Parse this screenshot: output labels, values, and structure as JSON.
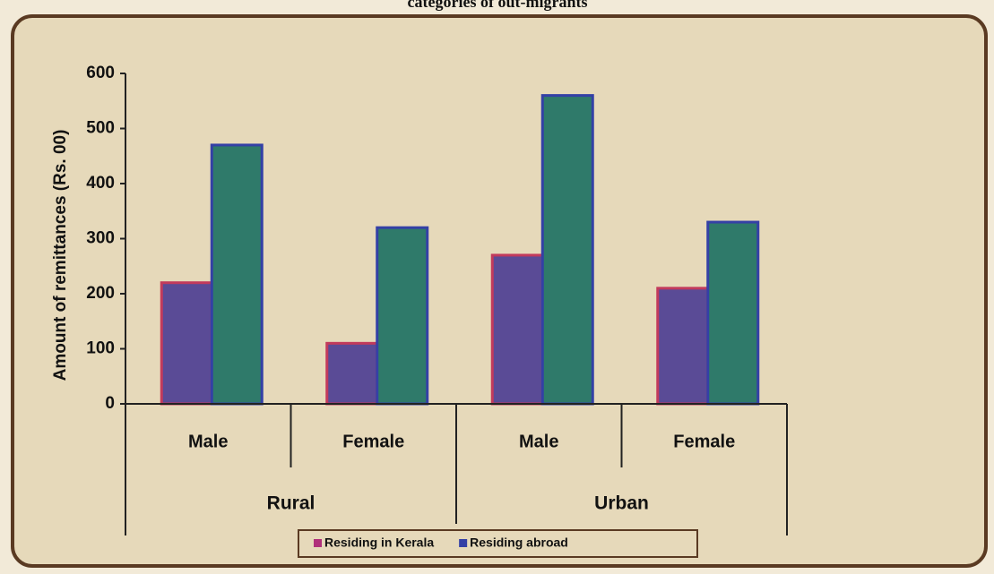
{
  "chart_data": {
    "type": "bar",
    "title": "categories of out-migrants",
    "ylabel": "Amount of remittances (Rs. 00)",
    "categories": [
      "Male",
      "Female",
      "Male",
      "Female"
    ],
    "groups": [
      "Rural",
      "Urban"
    ],
    "series": [
      {
        "name": "Residing in Kerala",
        "color": "#5a4b96",
        "edge": "#c23a5c",
        "values": [
          220,
          110,
          270,
          210
        ]
      },
      {
        "name": "Residing abroad",
        "color": "#2f7a6a",
        "edge": "#3440a6",
        "values": [
          470,
          320,
          560,
          330
        ]
      }
    ],
    "ylim": [
      0,
      600
    ],
    "yticks": [
      0,
      100,
      200,
      300,
      400,
      500,
      600
    ]
  }
}
